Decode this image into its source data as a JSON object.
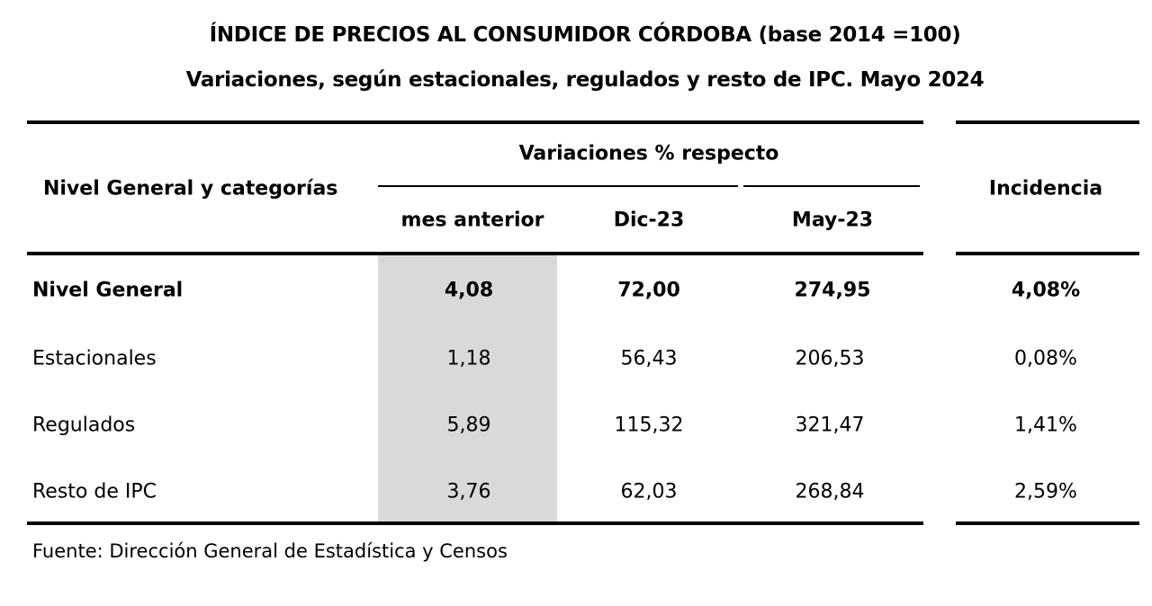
{
  "title": "ÍNDICE DE PRECIOS AL CONSUMIDOR CÓRDOBA (base 2014 =100)",
  "subtitle": "Variaciones, según estacionales, regulados y resto de IPC.  Mayo 2024",
  "header": {
    "category_col": "Nivel General y categorías",
    "group": "Variaciones % respecto",
    "cols": [
      "mes anterior",
      "Dic-23",
      "May-23"
    ],
    "incidence": "Incidencia"
  },
  "rows": [
    {
      "label": "Nivel General",
      "values": [
        "4,08",
        "72,00",
        "274,95"
      ],
      "incidence": "4,08%"
    },
    {
      "label": "Estacionales",
      "values": [
        "1,18",
        "56,43",
        "206,53"
      ],
      "incidence": "0,08%"
    },
    {
      "label": "Regulados",
      "values": [
        "5,89",
        "115,32",
        "321,47"
      ],
      "incidence": "1,41%"
    },
    {
      "label": "Resto de IPC",
      "values": [
        "3,76",
        "62,03",
        "268,84"
      ],
      "incidence": "2,59%"
    }
  ],
  "source": "Fuente: Dirección General de Estadística y Censos",
  "colors": {
    "highlight_column": "#d9d9d9",
    "rules": "#000000"
  }
}
